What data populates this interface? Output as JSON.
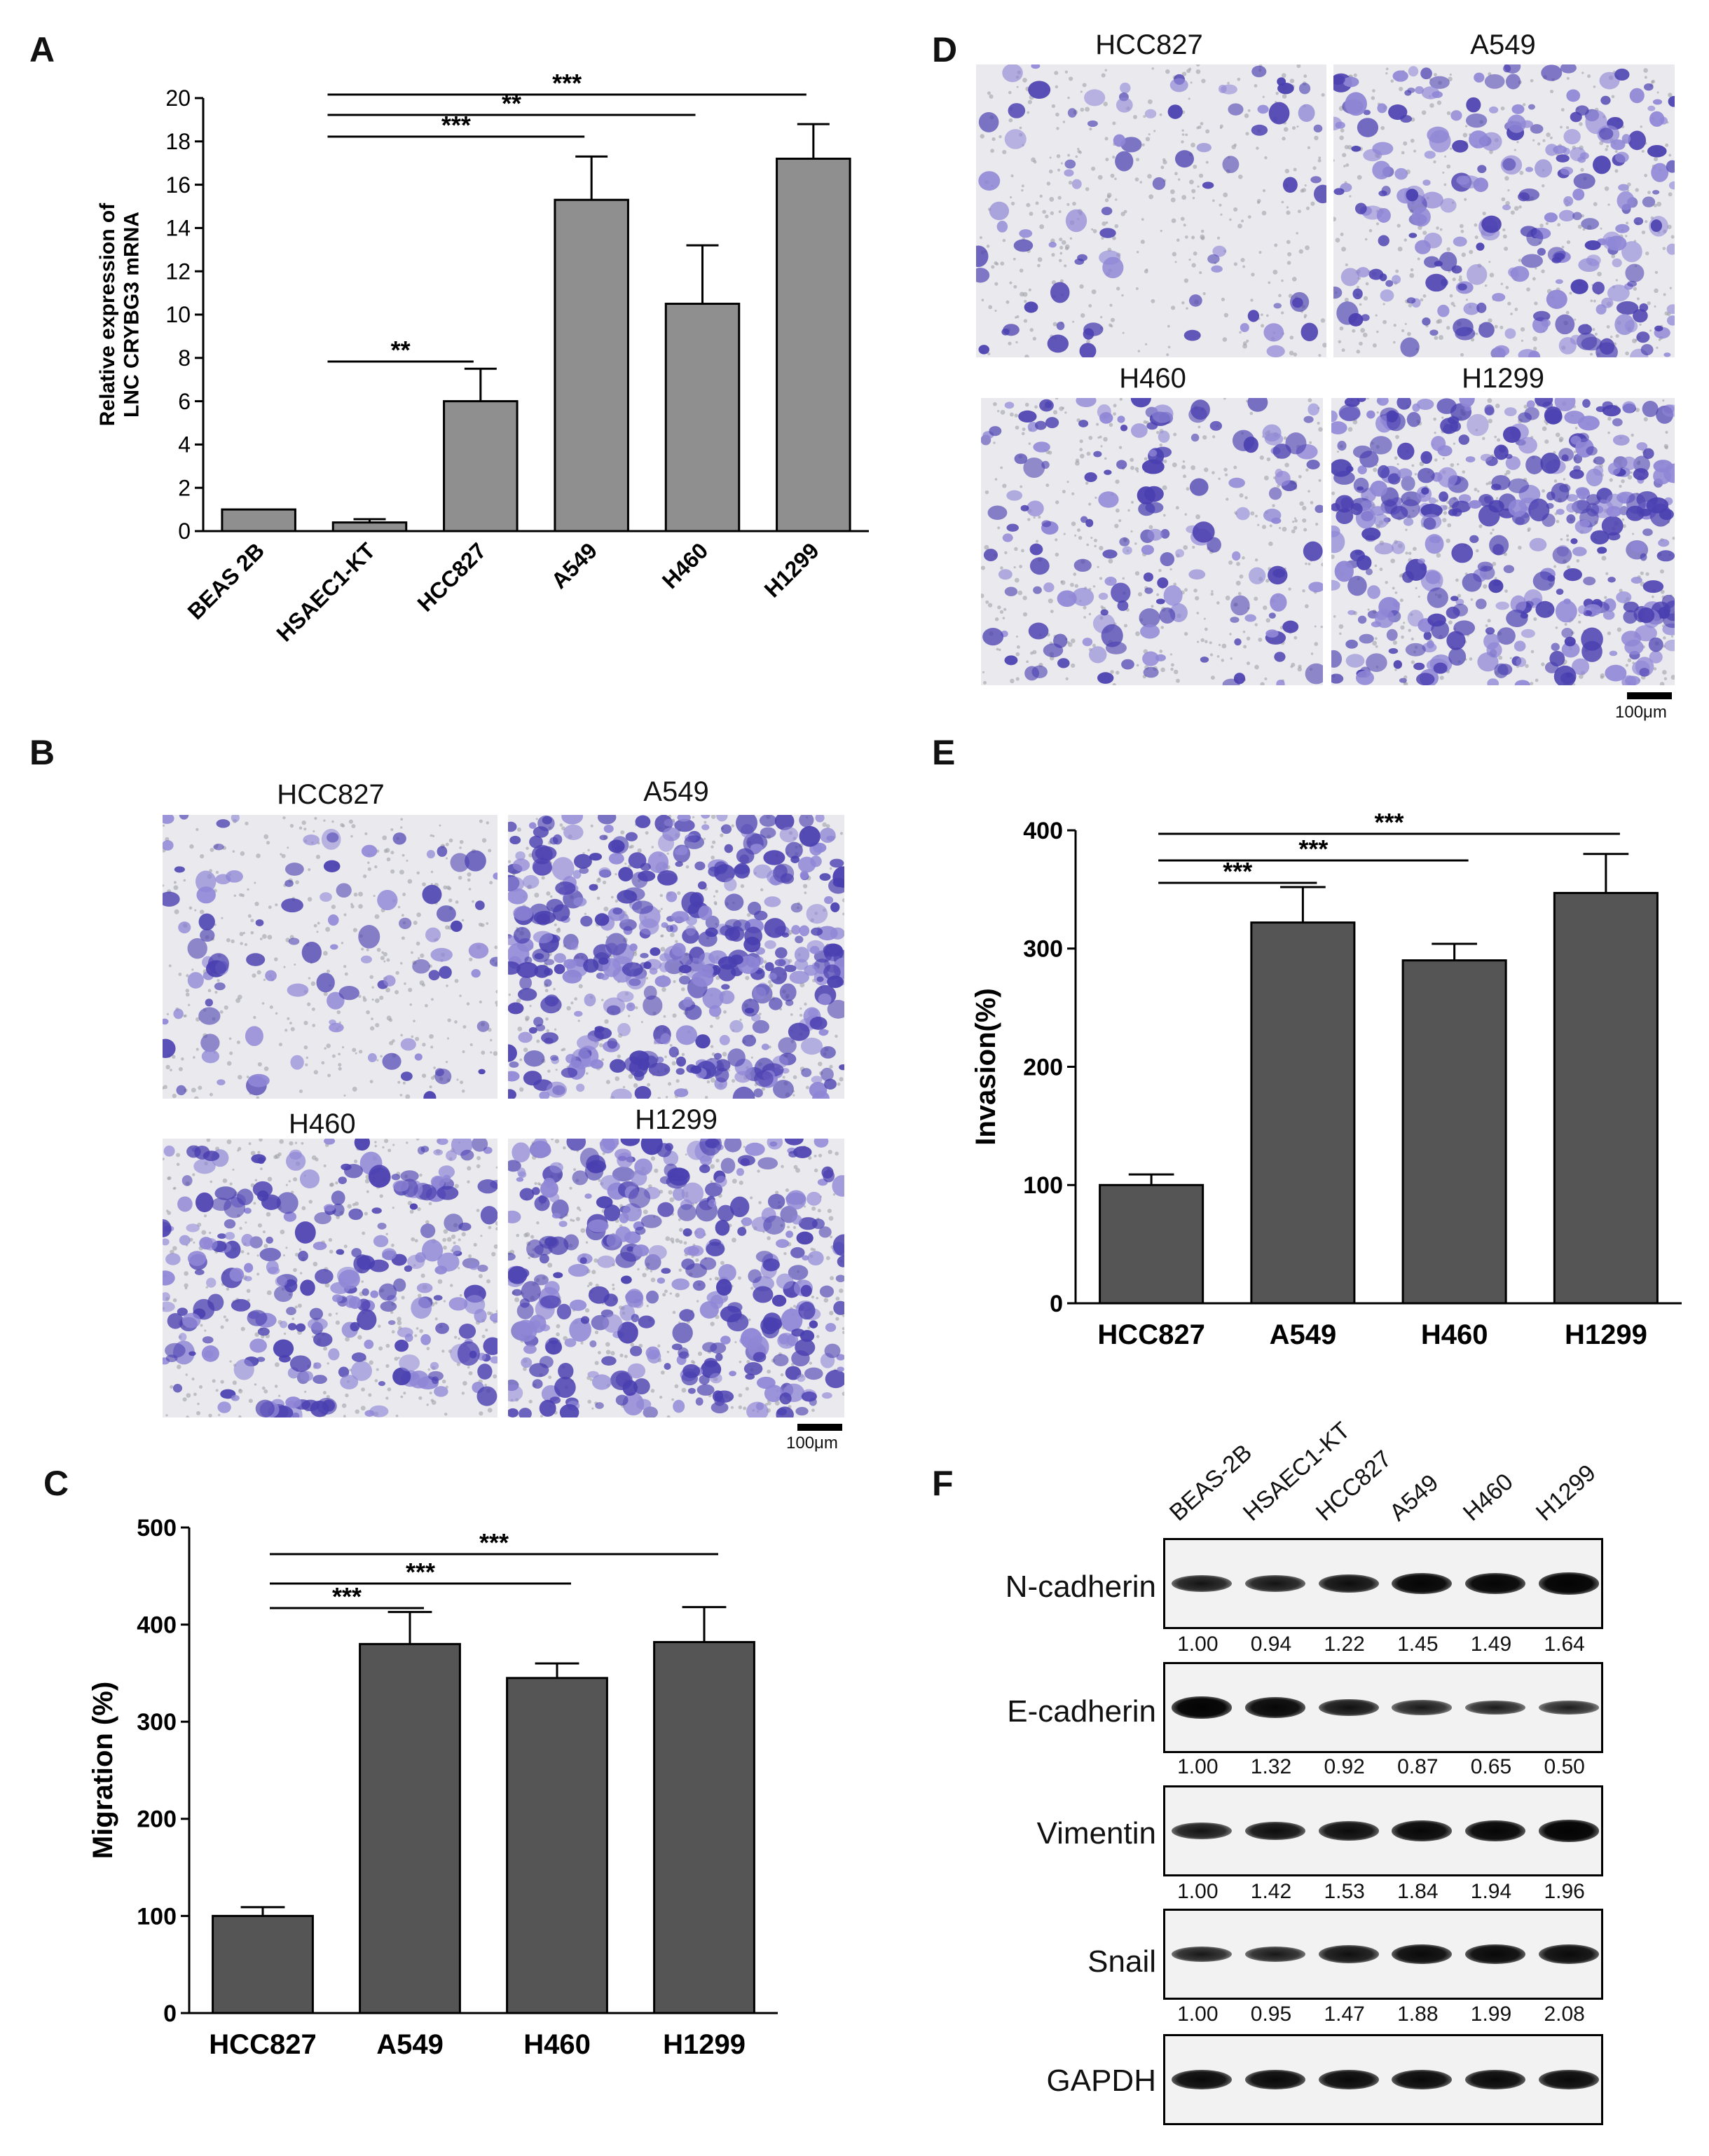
{
  "panel_letters": {
    "A": "A",
    "B": "B",
    "C": "C",
    "D": "D",
    "E": "E",
    "F": "F"
  },
  "colors": {
    "bar_light": "#8f8f8f",
    "bar_dark": "#555555",
    "stain": "#4a3fb0",
    "stain_light": "#8f86d6",
    "background": "#ffffff"
  },
  "chart_data": [
    {
      "panel": "A",
      "type": "bar",
      "categories": [
        "BEAS 2B",
        "HSAEC1-KT",
        "HCC827",
        "A549",
        "H460",
        "H1299"
      ],
      "values": [
        1.0,
        0.4,
        6.0,
        15.3,
        10.5,
        17.2
      ],
      "errors": [
        0,
        0.15,
        1.5,
        2.0,
        2.7,
        1.6
      ],
      "ylabel_lines": [
        "Relative expression of",
        "LNC CRYBG3 mRNA"
      ],
      "xlabel": "",
      "ylim": [
        0,
        20
      ],
      "yticks": [
        "0",
        "2",
        "4",
        "6",
        "8",
        "10",
        "12",
        "14",
        "16",
        "18",
        "20"
      ],
      "significance": [
        {
          "from": 1,
          "to": 2,
          "label": "**"
        },
        {
          "from": 1,
          "to": 3,
          "label": "***"
        },
        {
          "from": 1,
          "to": 4,
          "label": "**"
        },
        {
          "from": 1,
          "to": 5,
          "label": "***"
        }
      ]
    },
    {
      "panel": "C",
      "type": "bar",
      "categories": [
        "HCC827",
        "A549",
        "H460",
        "H1299"
      ],
      "values": [
        100,
        380,
        345,
        382
      ],
      "errors": [
        9,
        33,
        15,
        36
      ],
      "ylabel": "Migration (%)",
      "xlabel": "",
      "ylim": [
        0,
        500
      ],
      "yticks": [
        "0",
        "100",
        "200",
        "300",
        "400",
        "500"
      ],
      "significance": [
        {
          "from": 0,
          "to": 1,
          "label": "***"
        },
        {
          "from": 0,
          "to": 2,
          "label": "***"
        },
        {
          "from": 0,
          "to": 3,
          "label": "***"
        }
      ]
    },
    {
      "panel": "E",
      "type": "bar",
      "categories": [
        "HCC827",
        "A549",
        "H460",
        "H1299"
      ],
      "values": [
        100,
        322,
        290,
        347
      ],
      "errors": [
        9,
        30,
        14,
        33
      ],
      "ylabel": "Invasion(%)",
      "xlabel": "",
      "ylim": [
        0,
        400
      ],
      "yticks": [
        "0",
        "100",
        "200",
        "300",
        "400"
      ],
      "significance": [
        {
          "from": 0,
          "to": 1,
          "label": "***"
        },
        {
          "from": 0,
          "to": 2,
          "label": "***"
        },
        {
          "from": 0,
          "to": 3,
          "label": "***"
        }
      ]
    }
  ],
  "panel_b": {
    "images": [
      {
        "label": "HCC827",
        "density": 0.15
      },
      {
        "label": "A549",
        "density": 0.95
      },
      {
        "label": "H460",
        "density": 0.55
      },
      {
        "label": "H1299",
        "density": 0.75
      }
    ],
    "scale_bar": "100μm"
  },
  "panel_d": {
    "images": [
      {
        "label": "HCC827",
        "density": 0.12
      },
      {
        "label": "A549",
        "density": 0.5
      },
      {
        "label": "H460",
        "density": 0.3
      },
      {
        "label": "H1299",
        "density": 0.85
      }
    ],
    "scale_bar": "100μm"
  },
  "western_blot": {
    "lanes": [
      "BEAS-2B",
      "HSAEC1-KT",
      "HCC827",
      "A549",
      "H460",
      "H1299"
    ],
    "proteins": [
      {
        "name": "N-cadherin",
        "quant": [
          "1.00",
          "0.94",
          "1.22",
          "1.45",
          "1.49",
          "1.64"
        ],
        "intensity": [
          0.55,
          0.55,
          0.7,
          0.9,
          0.9,
          0.95
        ]
      },
      {
        "name": "E-cadherin",
        "quant": [
          "1.00",
          "1.32",
          "0.92",
          "0.87",
          "0.65",
          "0.50"
        ],
        "intensity": [
          0.95,
          0.85,
          0.6,
          0.4,
          0.35,
          0.3
        ]
      },
      {
        "name": "Vimentin",
        "quant": [
          "1.00",
          "1.42",
          "1.53",
          "1.84",
          "1.94",
          "1.96"
        ],
        "intensity": [
          0.55,
          0.7,
          0.75,
          0.85,
          0.88,
          0.95
        ]
      },
      {
        "name": "Snail",
        "quant": [
          "1.00",
          "0.95",
          "1.47",
          "1.88",
          "1.99",
          "2.08"
        ],
        "intensity": [
          0.45,
          0.45,
          0.65,
          0.8,
          0.82,
          0.78
        ]
      },
      {
        "name": "GAPDH",
        "quant": [],
        "intensity": [
          0.8,
          0.8,
          0.8,
          0.8,
          0.8,
          0.8
        ]
      }
    ]
  }
}
